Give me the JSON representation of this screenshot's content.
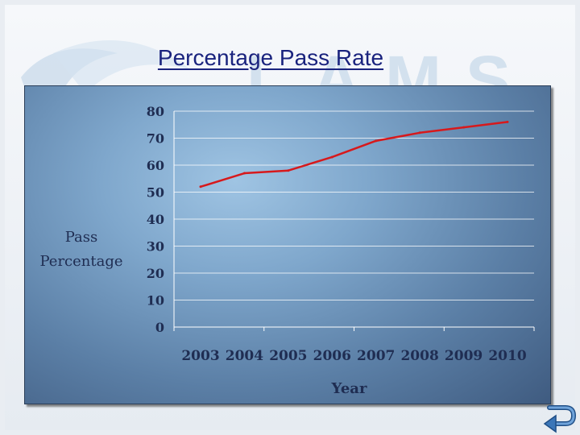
{
  "slide": {
    "title": "Percentage Pass Rate",
    "watermark_text": "LAMS"
  },
  "colors": {
    "title": "#1a237e",
    "series_line": "#d7191c",
    "axis_text": "#1f2d52",
    "grid": "#ffffff"
  },
  "icons": {
    "back": "return-arrow-icon"
  },
  "chart_data": {
    "type": "line",
    "title": "",
    "xlabel": "Year",
    "ylabel": "Pass Percentage",
    "ylabel_lines": [
      "Pass",
      "Percentage"
    ],
    "x": [
      "2003",
      "2004",
      "2005",
      "2006",
      "2007",
      "2008",
      "2009",
      "2010"
    ],
    "ylim": [
      0,
      80
    ],
    "yticks": [
      0,
      10,
      20,
      30,
      40,
      50,
      60,
      70,
      80
    ],
    "grid": true,
    "legend": "none",
    "series": [
      {
        "values": [
          52,
          57,
          58,
          63,
          69,
          72,
          74,
          76
        ]
      }
    ]
  }
}
